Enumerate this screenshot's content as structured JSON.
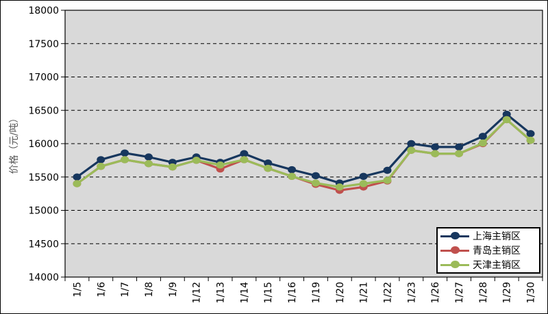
{
  "chart": {
    "y_axis_title": "价格（元/吨）",
    "legend": [
      {
        "label": "上海主销区",
        "color": "#17375E"
      },
      {
        "label": "青岛主销区",
        "color": "#C0504D"
      },
      {
        "label": "天津主销区",
        "color": "#9BBB59"
      }
    ],
    "plot_bg_color": "#D9D9D9",
    "axis_color": "#000000"
  },
  "chart_data": {
    "type": "line",
    "title": "",
    "xlabel": "",
    "ylabel": "价格（元/吨）",
    "categories": [
      "1/5",
      "1/6",
      "1/7",
      "1/8",
      "1/9",
      "1/12",
      "1/13",
      "1/14",
      "1/15",
      "1/16",
      "1/19",
      "1/20",
      "1/21",
      "1/22",
      "1/23",
      "1/26",
      "1/27",
      "1/28",
      "1/29",
      "1/30"
    ],
    "series": [
      {
        "name": "上海主销区",
        "color": "#17375E",
        "values": [
          15500,
          15760,
          15860,
          15800,
          15720,
          15800,
          15720,
          15850,
          15710,
          15610,
          15520,
          15410,
          15510,
          15600,
          16000,
          15950,
          15950,
          16110,
          16440,
          16150
        ]
      },
      {
        "name": "青岛主销区",
        "color": "#C0504D",
        "values": [
          15400,
          15660,
          15760,
          15700,
          15650,
          15750,
          15620,
          15760,
          15630,
          15510,
          15390,
          15300,
          15350,
          15440,
          15900,
          15850,
          15850,
          16000,
          16360,
          16050
        ]
      },
      {
        "name": "天津主销区",
        "color": "#9BBB59",
        "values": [
          15400,
          15660,
          15760,
          15700,
          15650,
          15750,
          15680,
          15760,
          15630,
          15510,
          15410,
          15350,
          15400,
          15450,
          15900,
          15850,
          15850,
          16010,
          16360,
          16050
        ]
      }
    ],
    "ylim": [
      14000,
      18000
    ],
    "y_tick_step": 500,
    "grid": "horizontal dashed black on gray plot area",
    "legend_position": "inside bottom-right",
    "x_tick_label_rotation": -90
  }
}
